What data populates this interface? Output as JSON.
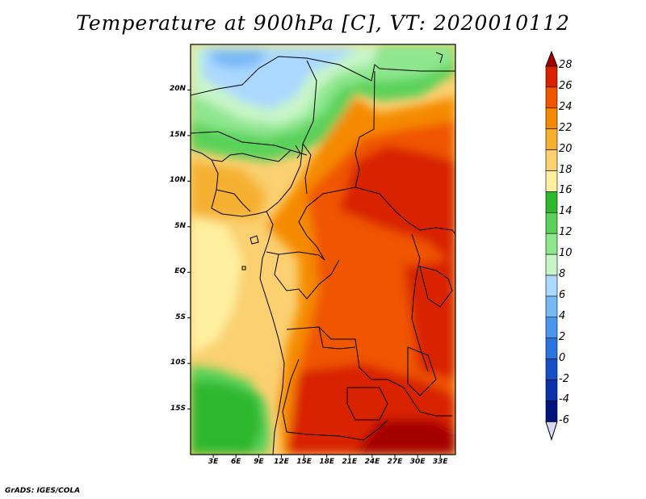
{
  "title": "Temperature at 900hPa [C], VT: 2020010112",
  "credit": "GrADS: IGES/COLA",
  "map": {
    "lon_range_E": [
      0,
      35
    ],
    "lat_range_N": [
      -20,
      25
    ],
    "lat_labels": [
      "20N",
      "15N",
      "10N",
      "5N",
      "EQ",
      "5S",
      "10S",
      "15S"
    ],
    "lon_labels": [
      "3E",
      "6E",
      "9E",
      "12E",
      "15E",
      "18E",
      "21E",
      "24E",
      "27E",
      "30E",
      "33E"
    ]
  },
  "colorbar": {
    "unit": "C",
    "labels": [
      "28",
      "26",
      "24",
      "22",
      "20",
      "18",
      "16",
      "14",
      "12",
      "10",
      "8",
      "6",
      "4",
      "2",
      "0",
      "-2",
      "-4",
      "-6"
    ],
    "colors": [
      "#a50000",
      "#d82200",
      "#f05500",
      "#f58a00",
      "#f5b030",
      "#fad070",
      "#fff0a0",
      "#2eb82e",
      "#5ad25a",
      "#8ee68e",
      "#c8f5c8",
      "#aad8ff",
      "#78b8f5",
      "#4a96ed",
      "#2a74df",
      "#1450c8",
      "#0a32a8",
      "#001480"
    ]
  }
}
